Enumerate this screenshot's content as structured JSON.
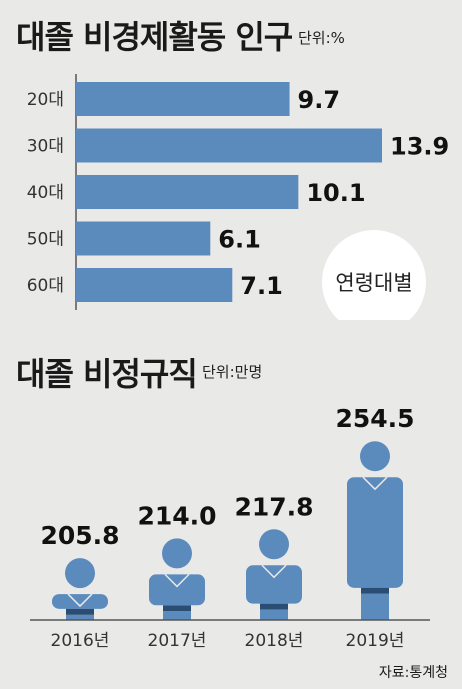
{
  "section1": {
    "title": "대졸 비경제활동 인구",
    "unit": "단위:%",
    "badge": "연령대별"
  },
  "section2": {
    "title": "대졸 비정규직",
    "unit": "단위:만명"
  },
  "source": "자료:통계청",
  "colors": {
    "bar": "#5b8bbd",
    "band": "#2a4e73",
    "background": "#e9e9e8",
    "badge": "#ffffff",
    "axis": "#555555"
  },
  "chart_data": [
    {
      "type": "bar",
      "orientation": "horizontal",
      "title": "대졸 비경제활동 인구",
      "unit": "단위:%",
      "categories": [
        "20대",
        "30대",
        "40대",
        "50대",
        "60대"
      ],
      "values": [
        9.7,
        13.9,
        10.1,
        6.1,
        7.1
      ],
      "xlim": [
        0,
        13.9
      ],
      "grid": false,
      "legend": "none"
    },
    {
      "type": "bar",
      "style": "pictogram",
      "title": "대졸 비정규직",
      "unit": "단위:만명",
      "categories": [
        "2016년",
        "2017년",
        "2018년",
        "2019년"
      ],
      "values": [
        205.8,
        214.0,
        217.8,
        254.5
      ],
      "value_labels": [
        "205.8",
        "214.0",
        "217.8",
        "254.5"
      ],
      "grid": false,
      "legend": "none"
    }
  ]
}
